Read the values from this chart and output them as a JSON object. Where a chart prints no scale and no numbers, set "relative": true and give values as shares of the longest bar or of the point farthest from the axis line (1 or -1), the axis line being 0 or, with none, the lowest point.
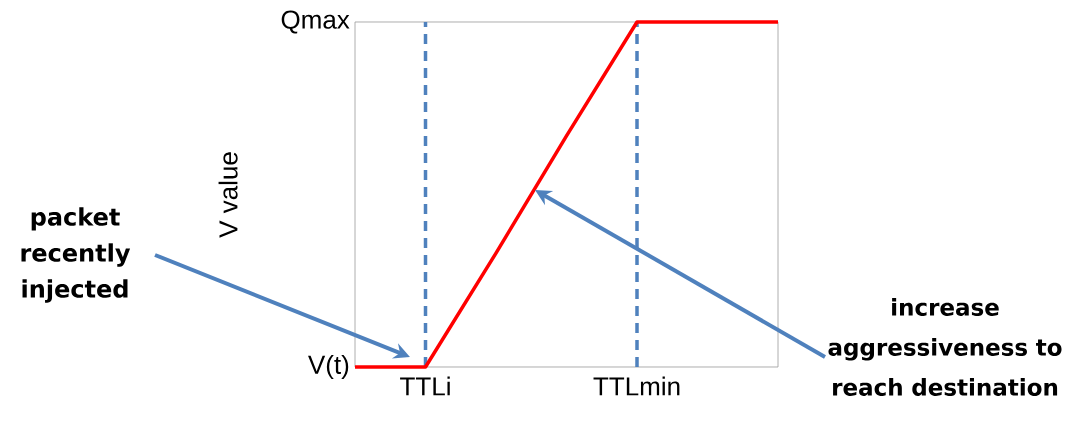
{
  "chart_data": {
    "type": "line",
    "ylabel": "V value",
    "relative": true,
    "categories": [
      null,
      "TTLi",
      null,
      null,
      "TTLmin",
      null,
      null
    ],
    "values": [
      0,
      0,
      0.33,
      0.67,
      1,
      1,
      1
    ],
    "color": "#ff0000",
    "ref_lines": [
      {
        "axis": "x",
        "value": "TTLi",
        "color": "#4f81bd",
        "line_style": "dashed"
      },
      {
        "axis": "x",
        "value": "TTLmin",
        "color": "#4f81bd",
        "line_style": "dashed"
      }
    ],
    "annotations": [
      "Qmax",
      "V(t)",
      "packet recently injected",
      "increase aggressiveness to reach destination"
    ],
    "marker": "none",
    "line_style": "solid",
    "grid": false
  }
}
